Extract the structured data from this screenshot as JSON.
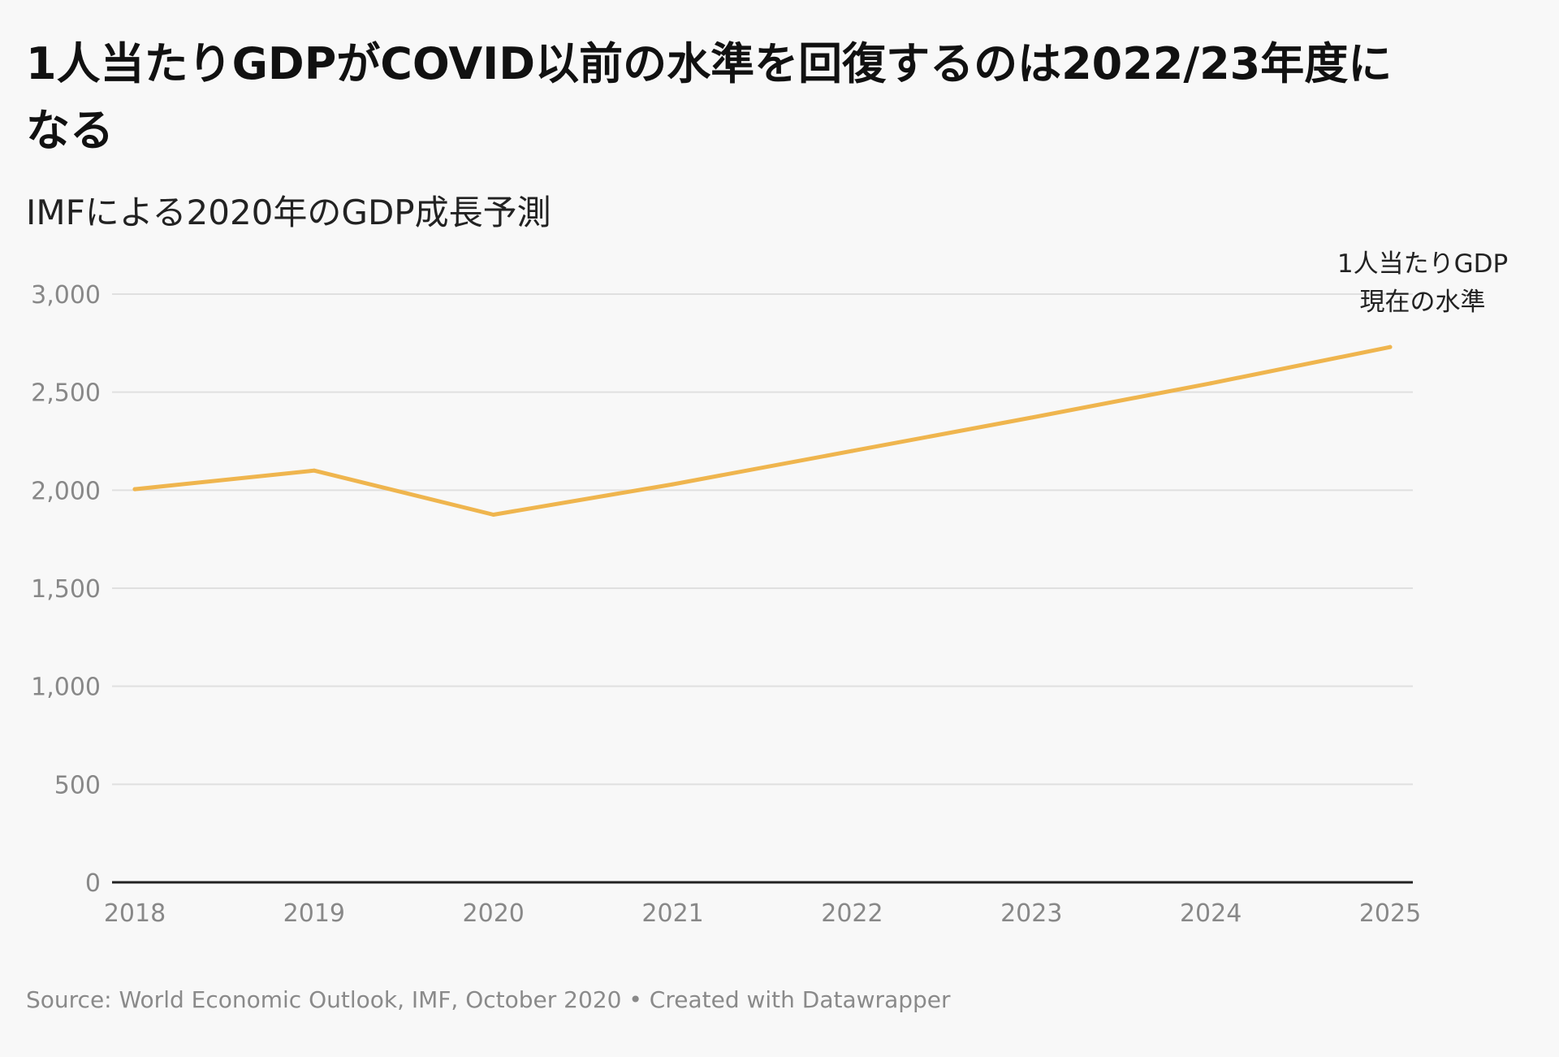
{
  "title": "1人当たりGDPがCOVID以前の水準を回復するのは2022/23年度になる",
  "subtitle": "IMFによる2020年のGDP成長予測",
  "footer": {
    "source": "Source: World Economic Outlook, IMF, October 2020",
    "separator": "•",
    "credit": "Created with Datawrapper"
  },
  "colors": {
    "line": "#efb54e",
    "grid": "#e0e0e0",
    "axis": "#222222",
    "tick_text": "#888888",
    "background": "#f8f8f8"
  },
  "chart_data": {
    "type": "line",
    "title": "1人当たりGDPがCOVID以前の水準を回復するのは2022/23年度になる",
    "subtitle": "IMFによる2020年のGDP成長予測",
    "xlabel": "",
    "ylabel": "",
    "x": [
      2018,
      2019,
      2020,
      2021,
      2022,
      2023,
      2024,
      2025
    ],
    "series": [
      {
        "name": "1人当たりGDP現在の水準",
        "label_lines": [
          "1人当たりGDP",
          "現在の水準"
        ],
        "values": [
          2005,
          2100,
          1875,
          2030,
          2200,
          2370,
          2545,
          2730
        ]
      }
    ],
    "ylim": [
      0,
      3000
    ],
    "y_ticks": [
      0,
      500,
      1000,
      1500,
      2000,
      2500,
      3000
    ],
    "y_tick_labels": [
      "0",
      "500",
      "1,000",
      "1,500",
      "2,000",
      "2,500",
      "3,000"
    ],
    "x_tick_labels": [
      "2018",
      "2019",
      "2020",
      "2021",
      "2022",
      "2023",
      "2024",
      "2025"
    ],
    "grid": true,
    "legend": "direct-label at line end"
  }
}
